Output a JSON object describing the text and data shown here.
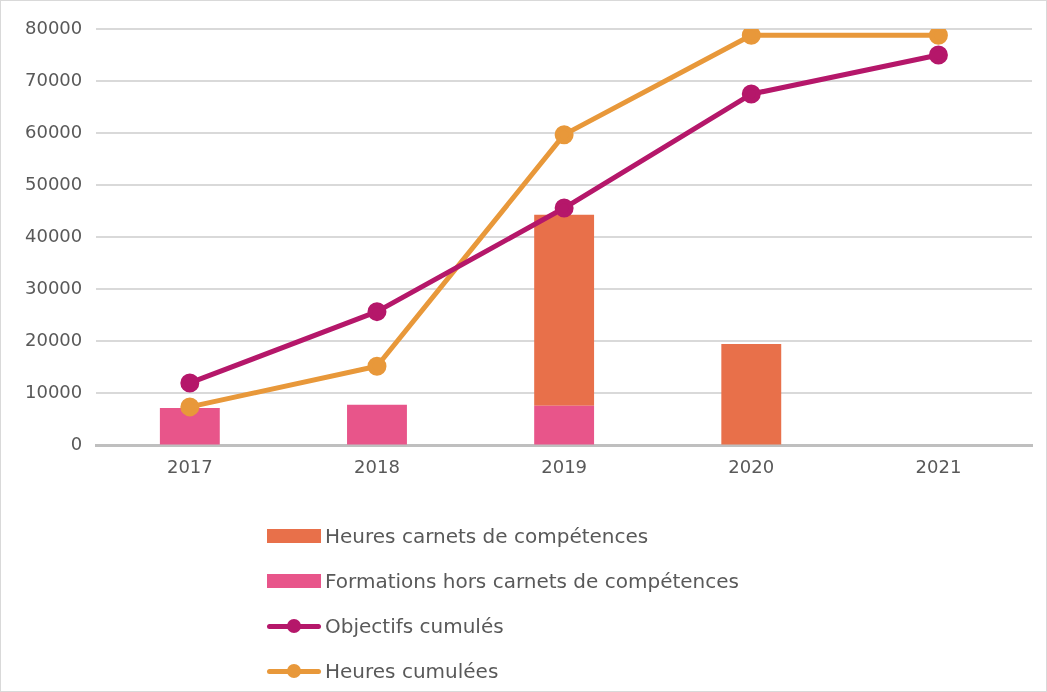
{
  "chart_data": {
    "type": "bar",
    "categories": [
      "2017",
      "2018",
      "2019",
      "2020",
      "2021"
    ],
    "stacked": true,
    "ylim": [
      0,
      80000
    ],
    "yticks": [
      0,
      10000,
      20000,
      30000,
      40000,
      50000,
      60000,
      70000,
      80000
    ],
    "grid": "y",
    "legend": "bottom",
    "marker": "circle",
    "series": [
      {
        "name": "Formations hors carnets de compétences",
        "color": "#e8558a",
        "values": [
          7200,
          7800,
          7600,
          null,
          null
        ]
      },
      {
        "name": "Heures carnets de compétences",
        "color": "#e8704a",
        "values": [
          null,
          null,
          36700,
          19500,
          null
        ]
      },
      {
        "name": "Objectifs cumulés",
        "type": "line",
        "color": "#b5176a",
        "values": [
          12000,
          25700,
          45600,
          67500,
          75000
        ]
      },
      {
        "name": "Heures cumulées",
        "type": "line",
        "color": "#e8983a",
        "values": [
          7400,
          15200,
          59700,
          78800,
          78800
        ]
      }
    ]
  }
}
